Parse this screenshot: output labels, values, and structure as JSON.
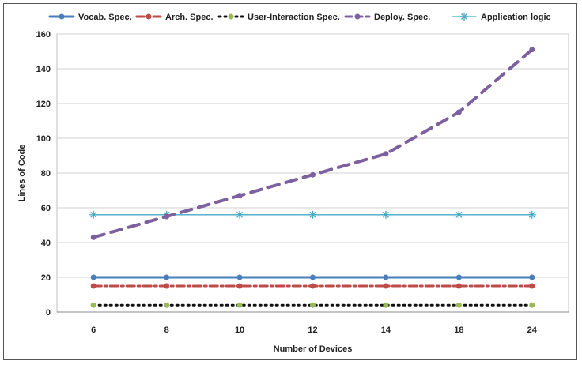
{
  "chart_data": {
    "type": "line",
    "title": "",
    "xlabel": "Number of Devices",
    "ylabel": "Lines of  Code",
    "categories": [
      "6",
      "8",
      "10",
      "12",
      "14",
      "18",
      "24"
    ],
    "ylim": [
      0,
      160
    ],
    "yticks": [
      0,
      20,
      40,
      60,
      80,
      100,
      120,
      140,
      160
    ],
    "grid": true,
    "legend_position": "top",
    "series": [
      {
        "name": "Vocab. Spec.",
        "values": [
          20,
          20,
          20,
          20,
          20,
          20,
          20
        ],
        "color": "#4a7ebb",
        "style": "solid",
        "marker": "circle"
      },
      {
        "name": "Arch. Spec.",
        "values": [
          15,
          15,
          15,
          15,
          15,
          15,
          15
        ],
        "color": "#be4b48",
        "style": "dashdot",
        "marker": "circle"
      },
      {
        "name": "User-Interaction Spec.",
        "values": [
          4,
          4,
          4,
          4,
          4,
          4,
          4
        ],
        "color": "#111111",
        "style": "dotted",
        "marker": "circle",
        "marker_color": "#98b954"
      },
      {
        "name": "Deploy. Spec.",
        "values": [
          43,
          55,
          67,
          79,
          91,
          115,
          151
        ],
        "color": "#7d60a0",
        "style": "dashed",
        "marker": "circle"
      },
      {
        "name": "Application logic",
        "values": [
          56,
          56,
          56,
          56,
          56,
          56,
          56
        ],
        "color": "#46aac5",
        "style": "solid",
        "marker": "star"
      }
    ]
  }
}
